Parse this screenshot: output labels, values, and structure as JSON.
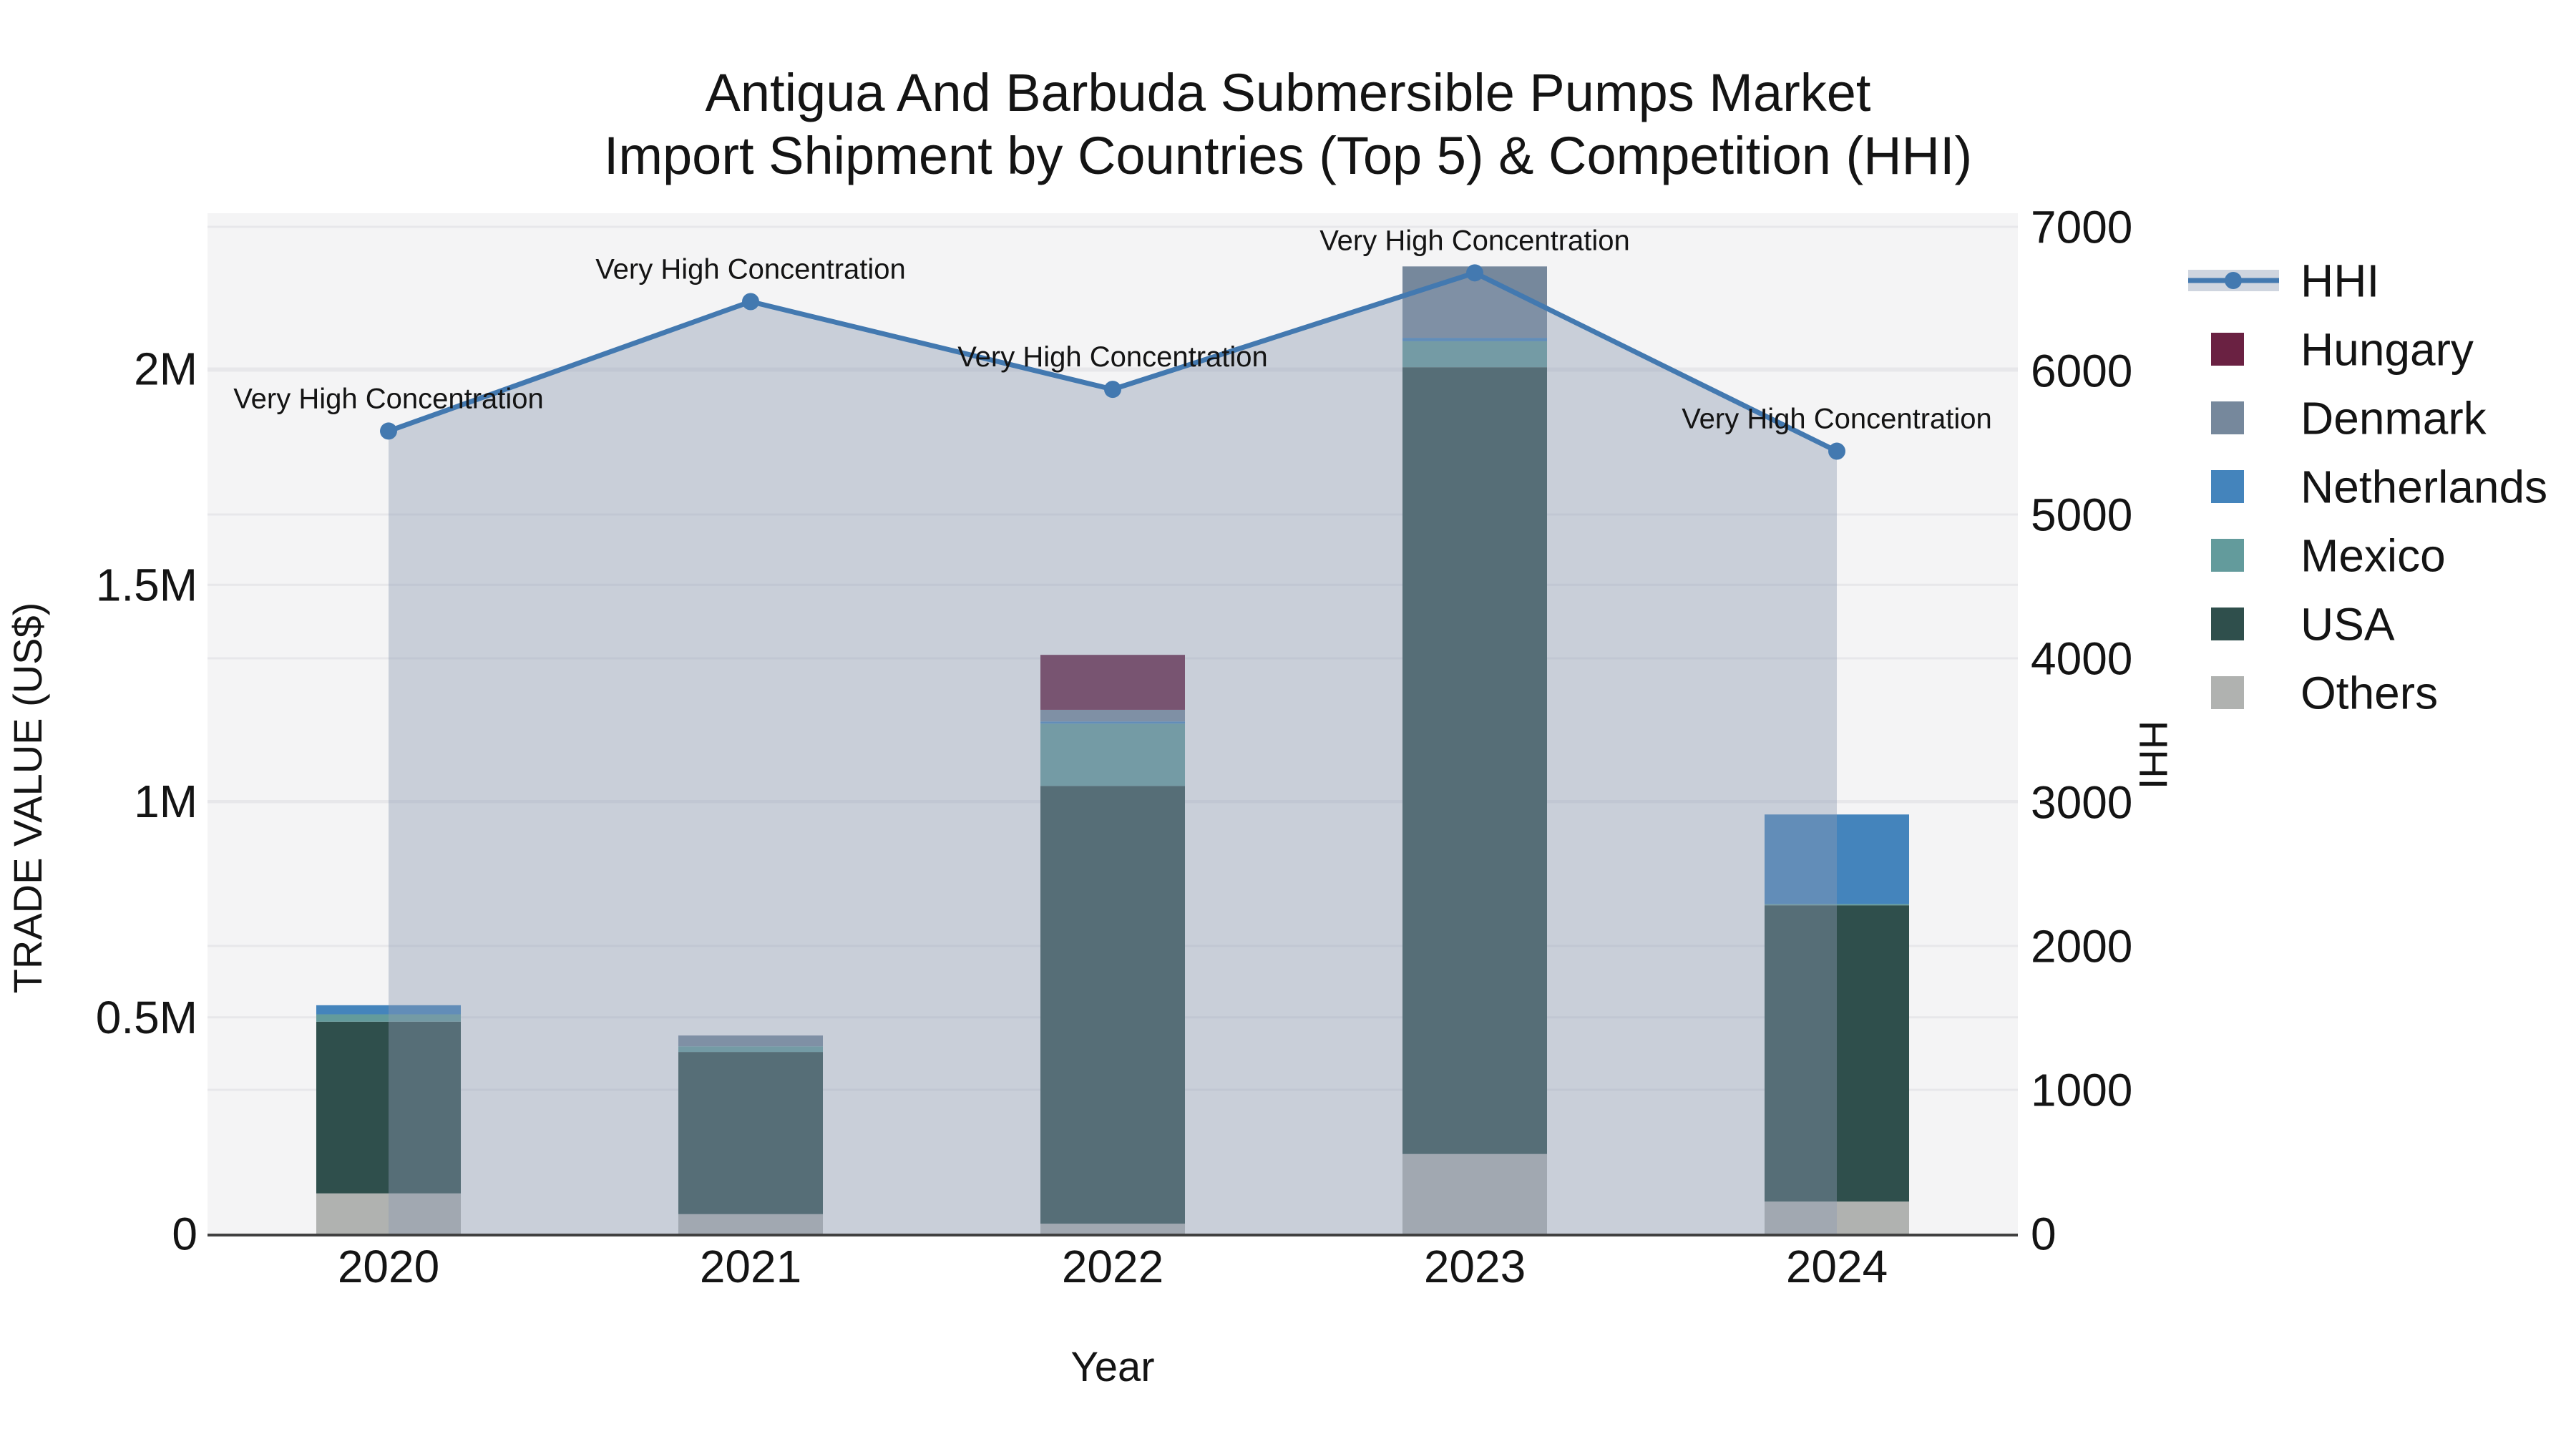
{
  "title": {
    "line1": "Antigua And Barbuda Submersible Pumps Market",
    "line2": "Import Shipment by Countries (Top 5) & Competition (HHI)"
  },
  "axes": {
    "x_title": "Year",
    "y_left_title": "TRADE VALUE (US$)",
    "y_right_title": "HHI",
    "x_ticks": [
      "2020",
      "2021",
      "2022",
      "2023",
      "2024"
    ],
    "y_left_ticks": [
      {
        "value": 0,
        "label": "0"
      },
      {
        "value": 500000,
        "label": "0.5M"
      },
      {
        "value": 1000000,
        "label": "1M"
      },
      {
        "value": 1500000,
        "label": "1.5M"
      },
      {
        "value": 2000000,
        "label": "2M"
      }
    ],
    "y_right_ticks": [
      {
        "value": 0,
        "label": "0"
      },
      {
        "value": 1000,
        "label": "1000"
      },
      {
        "value": 2000,
        "label": "2000"
      },
      {
        "value": 3000,
        "label": "3000"
      },
      {
        "value": 4000,
        "label": "4000"
      },
      {
        "value": 5000,
        "label": "5000"
      },
      {
        "value": 6000,
        "label": "6000"
      },
      {
        "value": 7000,
        "label": "7000"
      }
    ]
  },
  "legend": [
    {
      "label": "HHI",
      "type": "line"
    },
    {
      "label": "Hungary",
      "type": "square"
    },
    {
      "label": "Denmark",
      "type": "square"
    },
    {
      "label": "Netherlands",
      "type": "square"
    },
    {
      "label": "Mexico",
      "type": "square"
    },
    {
      "label": "USA",
      "type": "square"
    },
    {
      "label": "Others",
      "type": "square"
    }
  ],
  "colors": {
    "plot_bg": "#f4f4f5",
    "gridline": "#e7e7ea",
    "axis_line": "#404040",
    "text": "#141414",
    "hhi_line": "#4379B0",
    "hhi_area_fill": "rgba(141,156,178,0.42)"
  },
  "chart_data": {
    "type": "bar",
    "subtype": "stacked-bars-with-line-overlay",
    "title": "Antigua And Barbuda Submersible Pumps Market Import Shipment by Countries (Top 5) & Competition (HHI)",
    "xlabel": "Year",
    "ylabel_left": "TRADE VALUE (US$)",
    "ylabel_right": "HHI",
    "ylim_left": [
      0,
      2000000
    ],
    "ylim_right": [
      0,
      7000
    ],
    "grid": true,
    "legend_position": "right",
    "categories": [
      "2020",
      "2021",
      "2022",
      "2023",
      "2024"
    ],
    "series": [
      {
        "name": "Others",
        "color": "#B0B2B0",
        "values": [
          93000,
          45000,
          23000,
          184000,
          74000
        ]
      },
      {
        "name": "USA",
        "color": "#2F4F4C",
        "values": [
          397000,
          375000,
          1012000,
          1819000,
          685000
        ]
      },
      {
        "name": "Mexico",
        "color": "#639B9C",
        "values": [
          17000,
          13000,
          144000,
          60000,
          3000
        ]
      },
      {
        "name": "Netherlands",
        "color": "#4484BC",
        "values": [
          21000,
          0,
          5000,
          8000,
          207000
        ]
      },
      {
        "name": "Denmark",
        "color": "#76889C",
        "values": [
          0,
          25000,
          27000,
          165000,
          0
        ]
      },
      {
        "name": "Hungary",
        "color": "#6A2142",
        "values": [
          0,
          0,
          127000,
          0,
          0
        ]
      }
    ],
    "line_series": {
      "name": "HHI",
      "axis": "right",
      "values": [
        5580,
        6480,
        5870,
        6680,
        5440
      ]
    },
    "annotations": [
      "Very High Concentration",
      "Very High Concentration",
      "Very High Concentration",
      "Very High Concentration",
      "Very High Concentration"
    ]
  }
}
